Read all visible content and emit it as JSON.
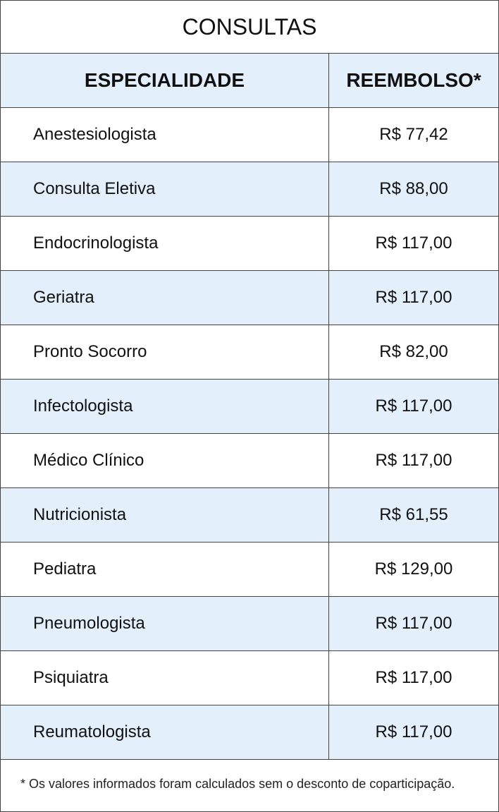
{
  "title": "CONSULTAS",
  "table": {
    "header": [
      "ESPECIALIDADE",
      "REEMBOLSO*"
    ],
    "rows": [
      [
        "Anestesiologista",
        "R$ 77,42"
      ],
      [
        "Consulta Eletiva",
        "R$ 88,00"
      ],
      [
        "Endocrinologista",
        "R$ 117,00"
      ],
      [
        "Geriatra",
        "R$ 117,00"
      ],
      [
        "Pronto Socorro",
        "R$ 82,00"
      ],
      [
        "Infectologista",
        "R$ 117,00"
      ],
      [
        "Médico Clínico",
        "R$ 117,00"
      ],
      [
        "Nutricionista",
        "R$ 61,55"
      ],
      [
        "Pediatra",
        "R$ 129,00"
      ],
      [
        "Pneumologista",
        "R$ 117,00"
      ],
      [
        "Psiquiatra",
        "R$ 117,00"
      ],
      [
        "Reumatologista",
        "R$ 117,00"
      ]
    ]
  },
  "footnote": "* Os valores informados foram calculados sem o desconto de coparticipação."
}
